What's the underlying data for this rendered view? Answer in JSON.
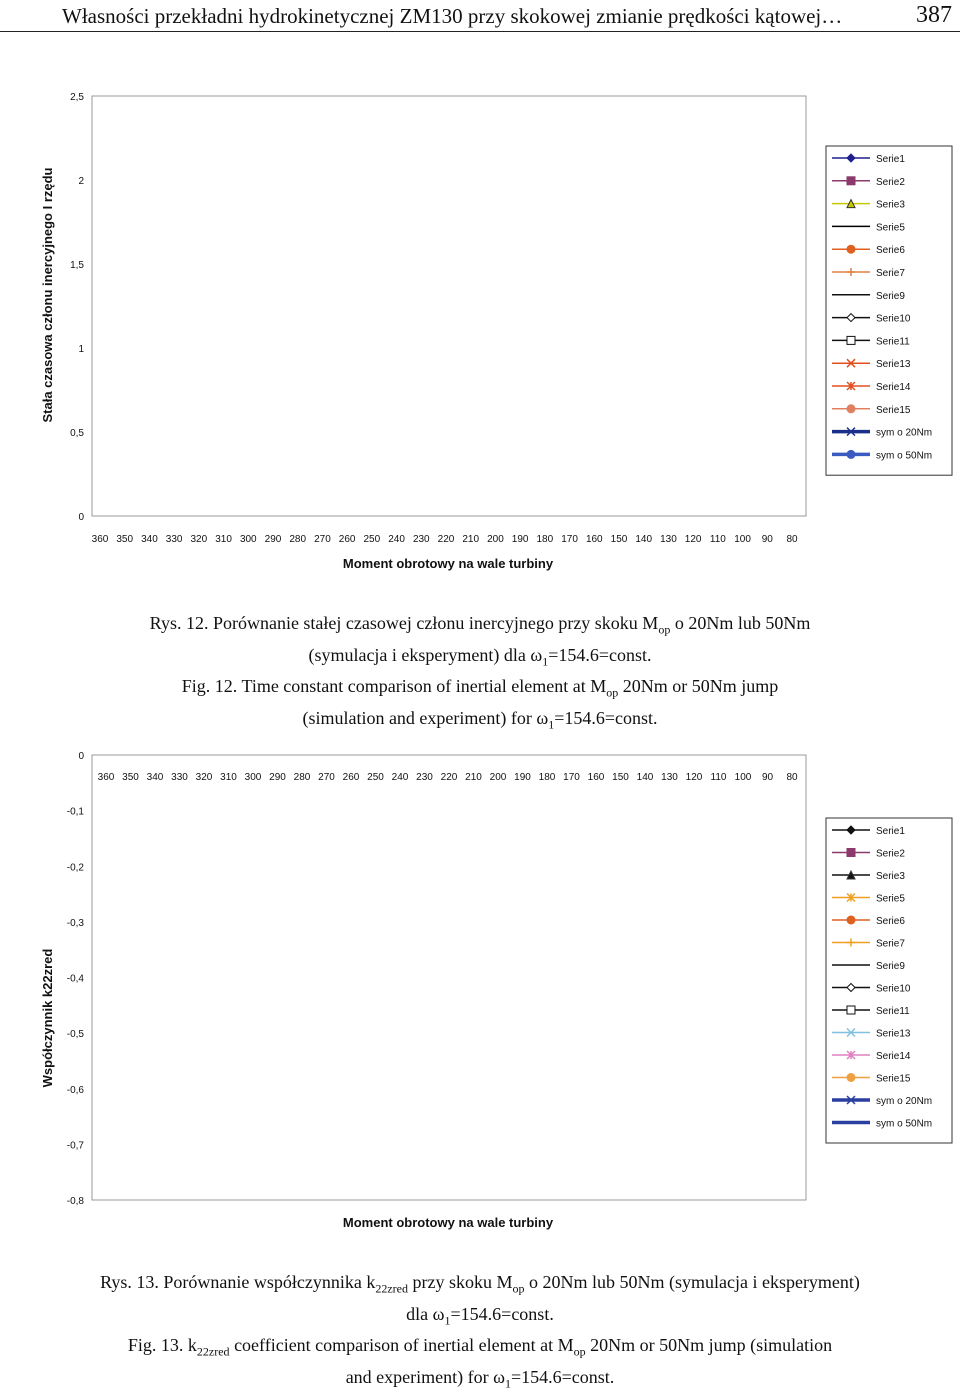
{
  "header": {
    "title": "Własności przekładni hydrokinetycznej ZM130 przy skokowej zmianie prędkości kątowej…",
    "page_number": "387"
  },
  "chart_data": [
    {
      "type": "line",
      "ylabel": "Stała czasowa członu inercyjnego I rzędu",
      "xlabel": "Moment obrotowy na wale turbiny",
      "y_ticks": [
        "2,5",
        "2",
        "1,5",
        "1",
        "0,5",
        "0"
      ],
      "ylim": [
        0,
        2.5
      ],
      "categories": [
        "360",
        "350",
        "340",
        "330",
        "320",
        "310",
        "300",
        "290",
        "280",
        "270",
        "260",
        "250",
        "240",
        "230",
        "220",
        "210",
        "200",
        "190",
        "180",
        "170",
        "160",
        "150",
        "140",
        "130",
        "120",
        "110",
        "100",
        "90",
        "80"
      ],
      "legend_position": "right",
      "legend": [
        {
          "name": "Serie1",
          "color": "#1f1f8f",
          "marker": "diamond"
        },
        {
          "name": "Serie2",
          "color": "#8b3a6b",
          "marker": "square"
        },
        {
          "name": "Serie3",
          "color": "#c8c800",
          "marker": "triangle"
        },
        {
          "name": "Serie5",
          "color": "#000000",
          "marker": "none"
        },
        {
          "name": "Serie6",
          "color": "#e06020",
          "marker": "circle"
        },
        {
          "name": "Serie7",
          "color": "#e08040",
          "marker": "plus"
        },
        {
          "name": "Serie9",
          "color": "#111111",
          "marker": "none"
        },
        {
          "name": "Serie10",
          "color": "#111111",
          "marker": "open-diamond"
        },
        {
          "name": "Serie11",
          "color": "#111111",
          "marker": "open-square"
        },
        {
          "name": "Serie13",
          "color": "#e05020",
          "marker": "cross"
        },
        {
          "name": "Serie14",
          "color": "#e05020",
          "marker": "star"
        },
        {
          "name": "Serie15",
          "color": "#e08060",
          "marker": "circle"
        },
        {
          "name": "sym o 20Nm",
          "color": "#1a2f8a",
          "marker": "cross"
        },
        {
          "name": "sym o 50Nm",
          "color": "#3a5bbf",
          "marker": "circle"
        }
      ]
    },
    {
      "type": "line",
      "ylabel": "Współczynnik k22zred",
      "xlabel": "Moment obrotowy na wale turbiny",
      "y_ticks": [
        "0",
        "-0,1",
        "-0,2",
        "-0,3",
        "-0,4",
        "-0,5",
        "-0,6",
        "-0,7",
        "-0,8"
      ],
      "ylim": [
        -0.8,
        0
      ],
      "categories": [
        "360",
        "350",
        "340",
        "330",
        "320",
        "310",
        "300",
        "290",
        "280",
        "270",
        "260",
        "250",
        "240",
        "230",
        "220",
        "210",
        "200",
        "190",
        "180",
        "170",
        "160",
        "150",
        "140",
        "130",
        "120",
        "110",
        "100",
        "90",
        "80"
      ],
      "legend_position": "right",
      "legend": [
        {
          "name": "Serie1",
          "color": "#111111",
          "marker": "diamond"
        },
        {
          "name": "Serie2",
          "color": "#8b3a6b",
          "marker": "square"
        },
        {
          "name": "Serie3",
          "color": "#111111",
          "marker": "triangle"
        },
        {
          "name": "Serie5",
          "color": "#f0a020",
          "marker": "star"
        },
        {
          "name": "Serie6",
          "color": "#e06020",
          "marker": "circle"
        },
        {
          "name": "Serie7",
          "color": "#f0a020",
          "marker": "plus"
        },
        {
          "name": "Serie9",
          "color": "#111111",
          "marker": "none"
        },
        {
          "name": "Serie10",
          "color": "#111111",
          "marker": "open-diamond"
        },
        {
          "name": "Serie11",
          "color": "#111111",
          "marker": "open-square"
        },
        {
          "name": "Serie13",
          "color": "#80c0e0",
          "marker": "cross"
        },
        {
          "name": "Serie14",
          "color": "#e080c0",
          "marker": "star"
        },
        {
          "name": "Serie15",
          "color": "#f0a040",
          "marker": "circle"
        },
        {
          "name": "sym o 20Nm",
          "color": "#2a3fa0",
          "marker": "cross"
        },
        {
          "name": "sym o 50Nm",
          "color": "#2a3fa0",
          "marker": "none"
        }
      ]
    }
  ],
  "captions": {
    "fig12_pl_a": "Rys. 12. Porównanie stałej czasowej członu inercyjnego przy skoku M",
    "fig12_pl_sub": "op",
    "fig12_pl_b": " o 20Nm lub 50Nm",
    "fig12_pl_line2_a": "(symulacja i eksperyment) dla ω",
    "fig12_pl_line2_sub": "1",
    "fig12_pl_line2_b": "=154.6=const.",
    "fig12_en_a": "Fig. 12. Time constant comparison of  inertial element at M",
    "fig12_en_sub": "op",
    "fig12_en_b": "  20Nm or 50Nm jump",
    "fig12_en_line2_a": "(simulation and experiment) for ω",
    "fig12_en_line2_sub": "1",
    "fig12_en_line2_b": "=154.6=const.",
    "fig13_pl_a": "Rys. 13. Porównanie współczynnika k",
    "fig13_pl_sub1": "22zred",
    "fig13_pl_b": " przy skoku M",
    "fig13_pl_sub2": "op",
    "fig13_pl_c": " o 20Nm lub 50Nm (symulacja i eksperyment)",
    "fig13_pl_line2_a": "dla ω",
    "fig13_pl_line2_sub": "1",
    "fig13_pl_line2_b": "=154.6=const.",
    "fig13_en_a": "Fig. 13.  k",
    "fig13_en_sub1": "22zred",
    "fig13_en_b": "  coefficient comparison of  inertial element at M",
    "fig13_en_sub2": "op",
    "fig13_en_c": "  20Nm or 50Nm jump (simulation",
    "fig13_en_line2_a": "and experiment) for ω",
    "fig13_en_line2_sub": "1",
    "fig13_en_line2_b": "=154.6=const."
  }
}
